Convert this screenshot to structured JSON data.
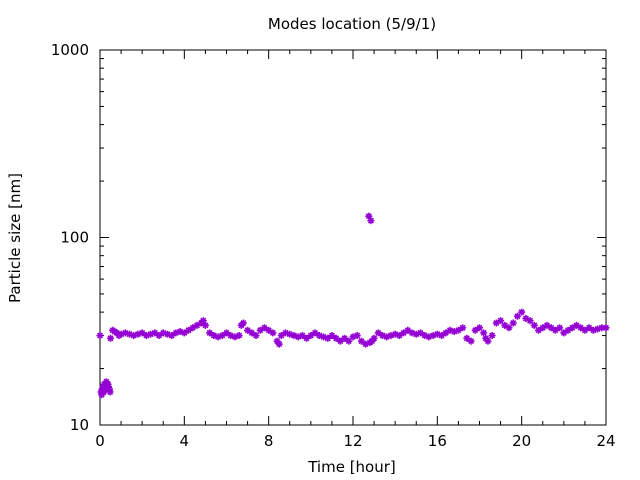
{
  "chart_data": {
    "type": "scatter",
    "title": "Modes location (5/9/1)",
    "xlabel": "Time [hour]",
    "ylabel": "Particle size [nm]",
    "xlim": [
      0,
      24
    ],
    "ylim": [
      10,
      1000
    ],
    "yscale": "log",
    "xticks": [
      0,
      4,
      8,
      12,
      16,
      20,
      24
    ],
    "xtick_labels": [
      "0",
      "4",
      "8",
      "12",
      "16",
      "20",
      "24"
    ],
    "yticks": [
      10,
      100,
      1000
    ],
    "ytick_labels": [
      "10",
      "100",
      "1000"
    ],
    "marker_color": "#9400d3",
    "marker": "asterisk",
    "grid": false,
    "legend": "none",
    "series": [
      {
        "x": [
          0.0,
          0.05,
          0.1,
          0.15,
          0.2,
          0.25,
          0.3,
          0.35,
          0.4,
          0.45,
          0.5,
          0.6,
          0.7,
          0.8,
          0.9,
          1.0,
          1.2,
          1.4,
          1.6,
          1.8,
          2.0,
          2.2,
          2.4,
          2.6,
          2.8,
          3.0,
          3.2,
          3.4,
          3.6,
          3.8,
          4.0,
          4.2,
          4.4,
          4.6,
          4.8,
          4.9,
          5.0,
          5.2,
          5.4,
          5.6,
          5.8,
          6.0,
          6.2,
          6.4,
          6.6,
          6.7,
          6.8,
          7.0,
          7.2,
          7.4,
          7.6,
          7.8,
          8.0,
          8.2,
          8.4,
          8.5,
          8.6,
          8.8,
          9.0,
          9.2,
          9.4,
          9.6,
          9.8,
          10.0,
          10.2,
          10.4,
          10.6,
          10.8,
          11.0,
          11.2,
          11.4,
          11.6,
          11.8,
          12.0,
          12.2,
          12.4,
          12.6,
          12.8,
          12.9,
          13.0,
          13.2,
          13.4,
          13.6,
          13.8,
          14.0,
          14.2,
          14.4,
          14.6,
          14.8,
          15.0,
          15.2,
          15.4,
          15.6,
          15.8,
          16.0,
          16.2,
          16.4,
          16.6,
          16.8,
          17.0,
          17.2,
          17.4,
          17.6,
          17.8,
          18.0,
          18.2,
          18.3,
          18.4,
          18.6,
          18.8,
          19.0,
          19.2,
          19.4,
          19.6,
          19.8,
          20.0,
          20.2,
          20.4,
          20.6,
          20.8,
          21.0,
          21.2,
          21.4,
          21.6,
          21.8,
          22.0,
          22.2,
          22.4,
          22.6,
          22.8,
          23.0,
          23.2,
          23.4,
          23.6,
          23.8,
          24.0,
          12.75,
          12.85,
          0.08,
          0.18,
          0.28,
          0.38,
          0.48
        ],
        "y": [
          30,
          15,
          15.5,
          16,
          16.5,
          16,
          17,
          16.5,
          16,
          15.5,
          29,
          32,
          31.5,
          31,
          30,
          30.5,
          31,
          30.5,
          30,
          30.5,
          31,
          30,
          30.5,
          31,
          30,
          31,
          30.5,
          30,
          31,
          31.5,
          31,
          32,
          33,
          34,
          35,
          36,
          34,
          31,
          30,
          29.5,
          30,
          31,
          30,
          29.5,
          30,
          34,
          35,
          32,
          31,
          30,
          32,
          33,
          32,
          31,
          28,
          27,
          30,
          31,
          30.5,
          30,
          29.5,
          30,
          29,
          30,
          31,
          30,
          29.5,
          29,
          30,
          29,
          28,
          29,
          28,
          29.5,
          30,
          28,
          27,
          27.5,
          28,
          29,
          31,
          30,
          29.5,
          30,
          30.5,
          30,
          31,
          32,
          31,
          30.5,
          31,
          30,
          29.5,
          30,
          30.5,
          30,
          31,
          32,
          31.5,
          32,
          33,
          29,
          28,
          32,
          33,
          31,
          29,
          28,
          30,
          35,
          36,
          34,
          33,
          35,
          38,
          40,
          37,
          36,
          34,
          32,
          33,
          34,
          33,
          32,
          33,
          31,
          32,
          33,
          34,
          33,
          32,
          33,
          32,
          32.5,
          33,
          33,
          130,
          123,
          14.5,
          15,
          15.5,
          16.5,
          15
        ]
      }
    ]
  }
}
